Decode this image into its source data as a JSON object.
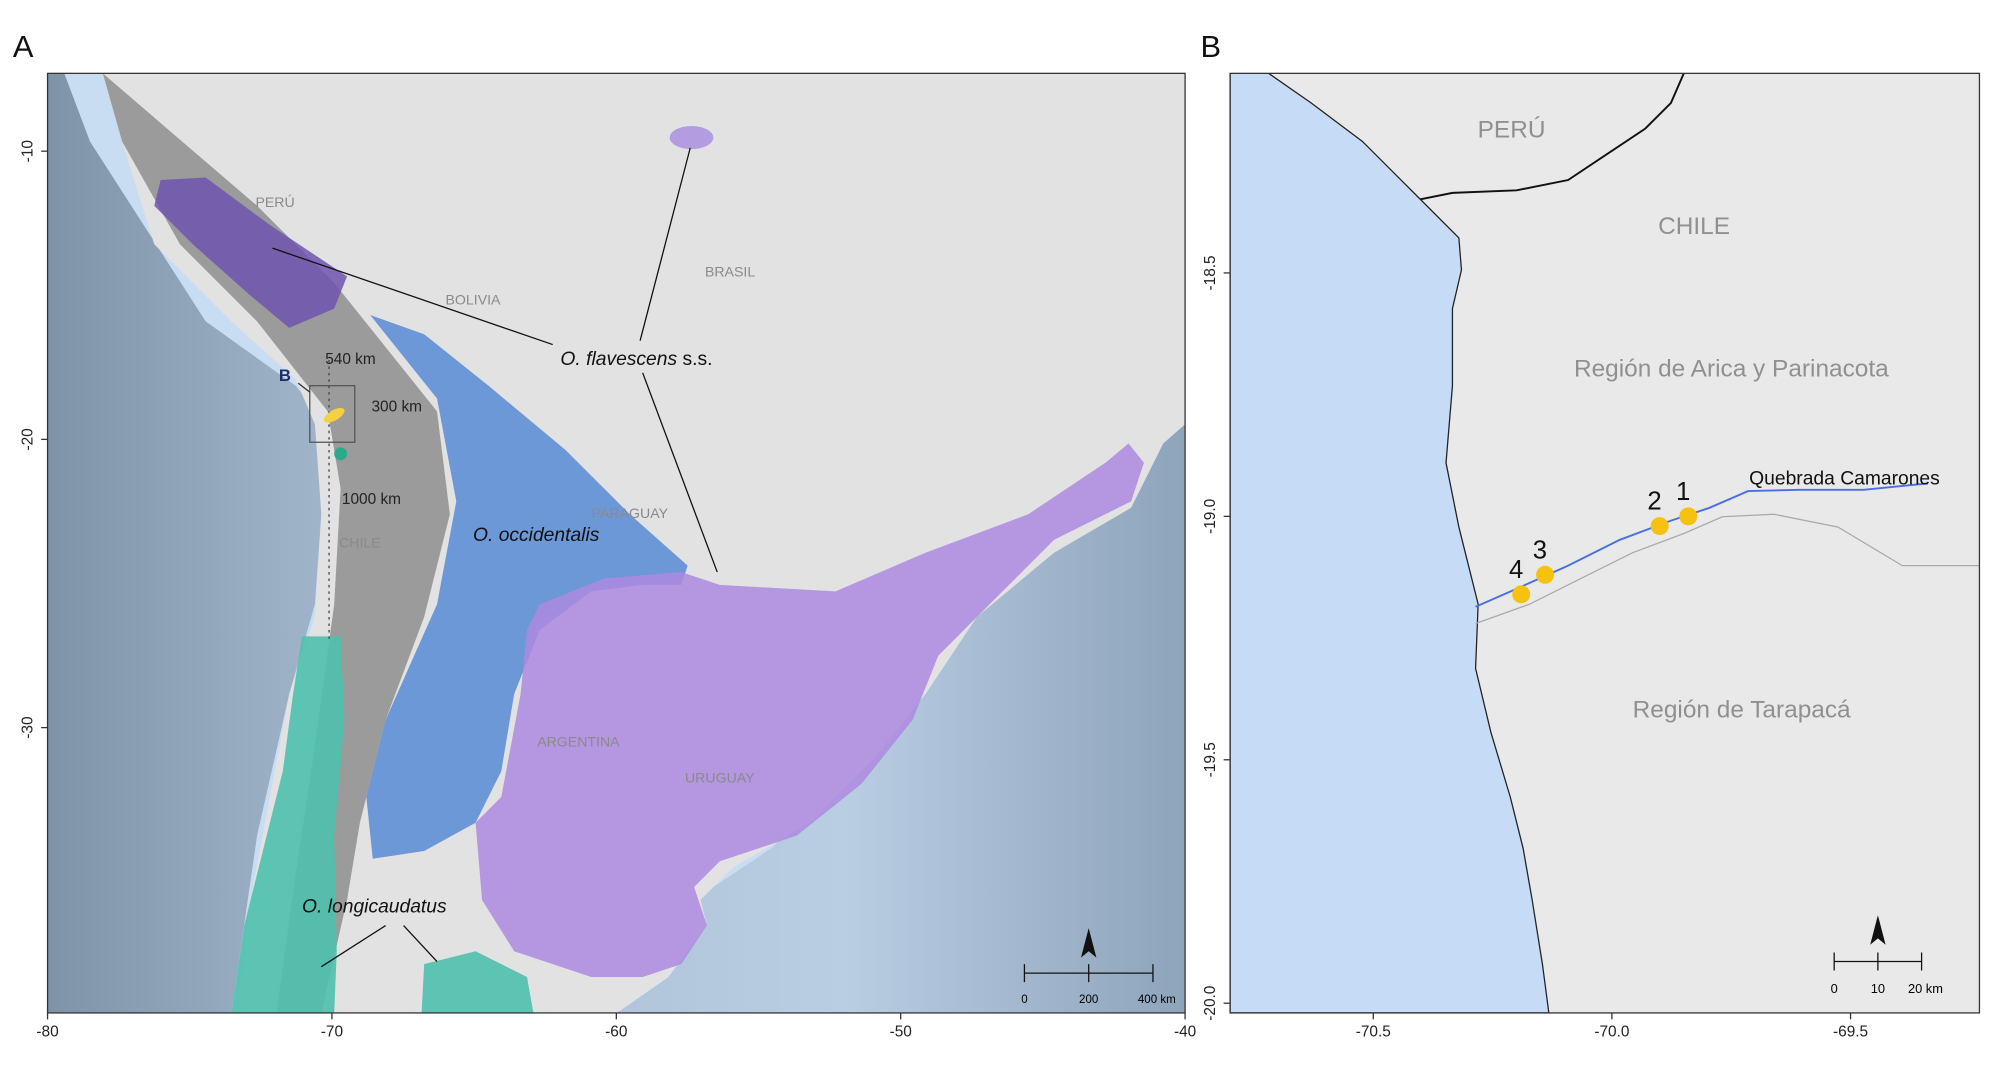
{
  "panel_a": {
    "label": "A",
    "xlim": [
      -80,
      -40
    ],
    "ylim": [
      -39.9,
      -7.3
    ],
    "xticks": [
      -80,
      -70,
      -60,
      -50,
      -40
    ],
    "yticks": [
      -10,
      -20,
      -30
    ],
    "places": [
      "PERÚ",
      "BOLIVIA",
      "BRASIL",
      "PARAGUAY",
      "CHILE",
      "ARGENTINA",
      "URUGUAY"
    ],
    "species": [
      {
        "name": "O. flavescens",
        "suffix": "s.s."
      },
      {
        "name": "O. occidentalis"
      },
      {
        "name": "O. longicaudatus"
      }
    ],
    "distances": [
      "540 km",
      "300 km",
      "1000 km"
    ],
    "inset_label": "B",
    "scale_bar": [
      "0",
      "200",
      "400 km"
    ]
  },
  "panel_b": {
    "label": "B",
    "xlim": [
      -70.8,
      -69.23
    ],
    "ylim": [
      -20.02,
      -18.09
    ],
    "xticks": [
      -70.5,
      {
        "value": -70,
        "label": "-70.0"
      },
      -69.5
    ],
    "yticks": [
      -18.5,
      {
        "value": -19,
        "label": "-19.0"
      },
      -19.5,
      {
        "value": -20,
        "label": "-20.0"
      }
    ],
    "places": [
      "PERÚ",
      "CHILE",
      "Región de Arica y Parinacota",
      "Región de Tarapacá"
    ],
    "river": "Quebrada Camarones",
    "sites": [
      {
        "label": "1",
        "lon": -69.84,
        "lat": -19.0
      },
      {
        "label": "2",
        "lon": -69.9,
        "lat": -19.02
      },
      {
        "label": "3",
        "lon": -70.14,
        "lat": -19.12
      },
      {
        "label": "4",
        "lon": -70.19,
        "lat": -19.16
      }
    ],
    "scale_bar": [
      "0",
      "10",
      "20 km"
    ]
  }
}
